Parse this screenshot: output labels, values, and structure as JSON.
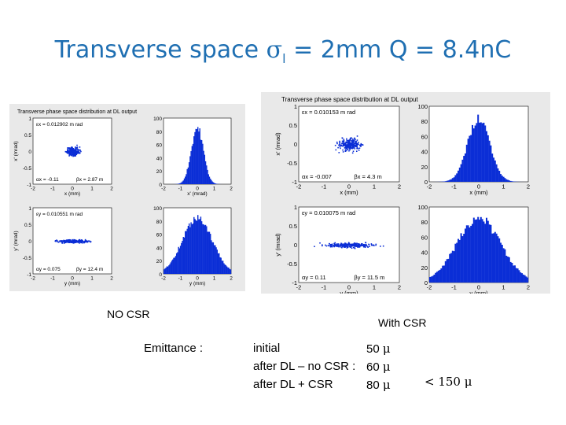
{
  "title": {
    "prefix": "Transverse space ",
    "sigma": "σ",
    "sub": "l",
    "suffix": " = 2mm  Q = 8.4nC"
  },
  "captions": {
    "no_csr": "NO CSR",
    "with_csr": "With CSR"
  },
  "emittance": {
    "label": "Emittance :",
    "rows": [
      {
        "label": "initial",
        "value": "50",
        "unit": "μ"
      },
      {
        "label": "after DL – no CSR :",
        "value": "60",
        "unit": "μ"
      },
      {
        "label": "after DL + CSR",
        "value": "80",
        "unit": "μ"
      }
    ],
    "limit": "< 150 μ"
  },
  "panel_left": {
    "header": "Transverse phase space distribution at DL output",
    "top": {
      "ylabel": "x' (mrad)",
      "xlabel": "x (mm)",
      "hist_xlabel": "x' (mrad)",
      "eps": "εx = 0.012902 m rad",
      "alpha": "αx = -0.11",
      "beta": "βx = 2.87 m"
    },
    "bottom": {
      "ylabel": "y' (mrad)",
      "xlabel": "y (mm)",
      "hist_xlabel": "y (mm)",
      "eps": "εy = 0.010551 m rad",
      "alpha": "αy = 0.075",
      "beta": "βy = 12.4 m"
    },
    "xticks": [
      "-2",
      "-1",
      "0",
      "1",
      "2"
    ],
    "yticks": [
      "1",
      "0.5",
      "0",
      "-0.5",
      "-1"
    ],
    "hticks": [
      "100",
      "80",
      "60",
      "40",
      "20",
      "0"
    ]
  },
  "panel_right": {
    "header": "Transverse phase space distribution at DL output",
    "top": {
      "ylabel": "x' (mrad)",
      "xlabel": "x (mm)",
      "hist_xlabel": "x (mm)",
      "eps": "εx = 0.010153 m rad",
      "alpha": "αx = -0.007",
      "beta": "βx = 4.3 m"
    },
    "bottom": {
      "ylabel": "y' (mrad)",
      "xlabel": "y (mm)",
      "hist_xlabel": "y (mm)",
      "eps": "εy = 0.010075 m rad",
      "alpha": "αy = 0.11",
      "beta": "βy = 11.5 m"
    },
    "xticks": [
      "-2",
      "-1",
      "0",
      "1",
      "2"
    ],
    "yticks": [
      "1",
      "0.5",
      "0",
      "-0.5",
      "-1"
    ],
    "hticks": [
      "100",
      "80",
      "60",
      "40",
      "20",
      "0"
    ]
  },
  "colors": {
    "title": "#1f6fb2",
    "data": "#0b2ed6",
    "panel": "#e9e9e9"
  }
}
